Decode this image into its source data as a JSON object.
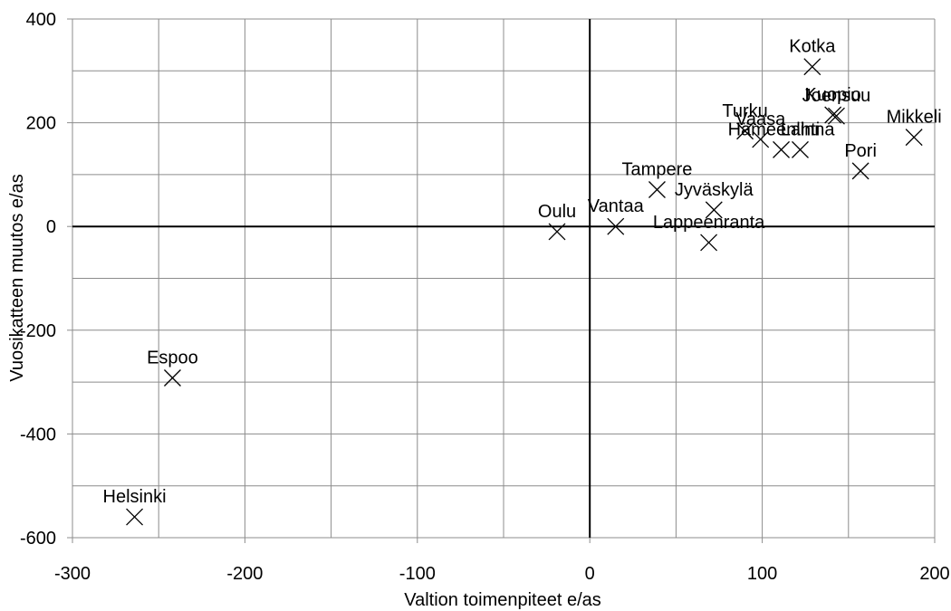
{
  "chart_data": {
    "type": "scatter",
    "xlabel": "Valtion toimenpiteet e/as",
    "ylabel": "Vuosikatteen muutos e/as",
    "xlim": [
      -300,
      200
    ],
    "ylim": [
      -600,
      400
    ],
    "xticks": [
      -300,
      -200,
      -100,
      0,
      100,
      200
    ],
    "yticks": [
      -600,
      -400,
      -200,
      0,
      200,
      400
    ],
    "grid": true,
    "marker": "x",
    "points": [
      {
        "label": "Helsinki",
        "x": -264,
        "y": -560
      },
      {
        "label": "Espoo",
        "x": -242,
        "y": -292
      },
      {
        "label": "Oulu",
        "x": -19,
        "y": -10
      },
      {
        "label": "Vantaa",
        "x": 15,
        "y": 0
      },
      {
        "label": "Tampere",
        "x": 39,
        "y": 71
      },
      {
        "label": "Jyväskylä",
        "x": 72,
        "y": 32
      },
      {
        "label": "Lappeenranta",
        "x": 69,
        "y": -31
      },
      {
        "label": "Turku",
        "x": 90,
        "y": 184
      },
      {
        "label": "Vaasa",
        "x": 99,
        "y": 168
      },
      {
        "label": "Hämeenlinna",
        "x": 111,
        "y": 148
      },
      {
        "label": "Lahti",
        "x": 122,
        "y": 148
      },
      {
        "label": "Kotka",
        "x": 129,
        "y": 308
      },
      {
        "label": "Kuopio",
        "x": 141,
        "y": 215
      },
      {
        "label": "Joensuu",
        "x": 143,
        "y": 213
      },
      {
        "label": "Pori",
        "x": 157,
        "y": 107
      },
      {
        "label": "Mikkeli",
        "x": 188,
        "y": 172
      }
    ]
  }
}
